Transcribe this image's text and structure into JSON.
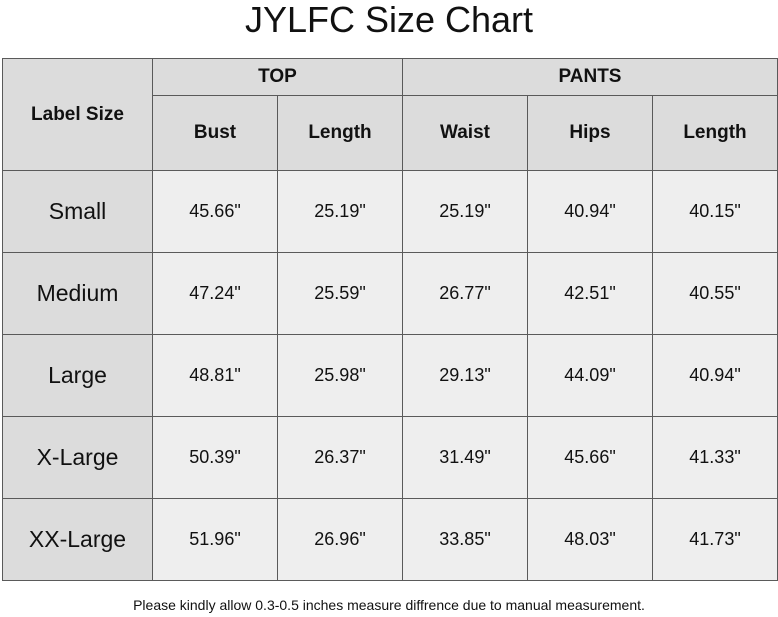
{
  "title": "JYLFC Size Chart",
  "table": {
    "label_header": "Label Size",
    "groups": [
      {
        "label": "TOP",
        "columns": [
          "Bust",
          "Length"
        ]
      },
      {
        "label": "PANTS",
        "columns": [
          "Waist",
          "Hips",
          "Length"
        ]
      }
    ],
    "rows": [
      [
        "Small",
        "45.66\"",
        "25.19\"",
        "25.19\"",
        "40.94\"",
        "40.15\""
      ],
      [
        "Medium",
        "47.24\"",
        "25.59\"",
        "26.77\"",
        "42.51\"",
        "40.55\""
      ],
      [
        "Large",
        "48.81\"",
        "25.98\"",
        "29.13\"",
        "44.09\"",
        "40.94\""
      ],
      [
        "X-Large",
        "50.39\"",
        "26.37\"",
        "31.49\"",
        "45.66\"",
        "41.33\""
      ],
      [
        "XX-Large",
        "51.96\"",
        "26.96\"",
        "33.85\"",
        "48.03\"",
        "41.73\""
      ]
    ]
  },
  "footer": "Please kindly allow 0.3-0.5 inches measure diffrence due to manual measurement."
}
